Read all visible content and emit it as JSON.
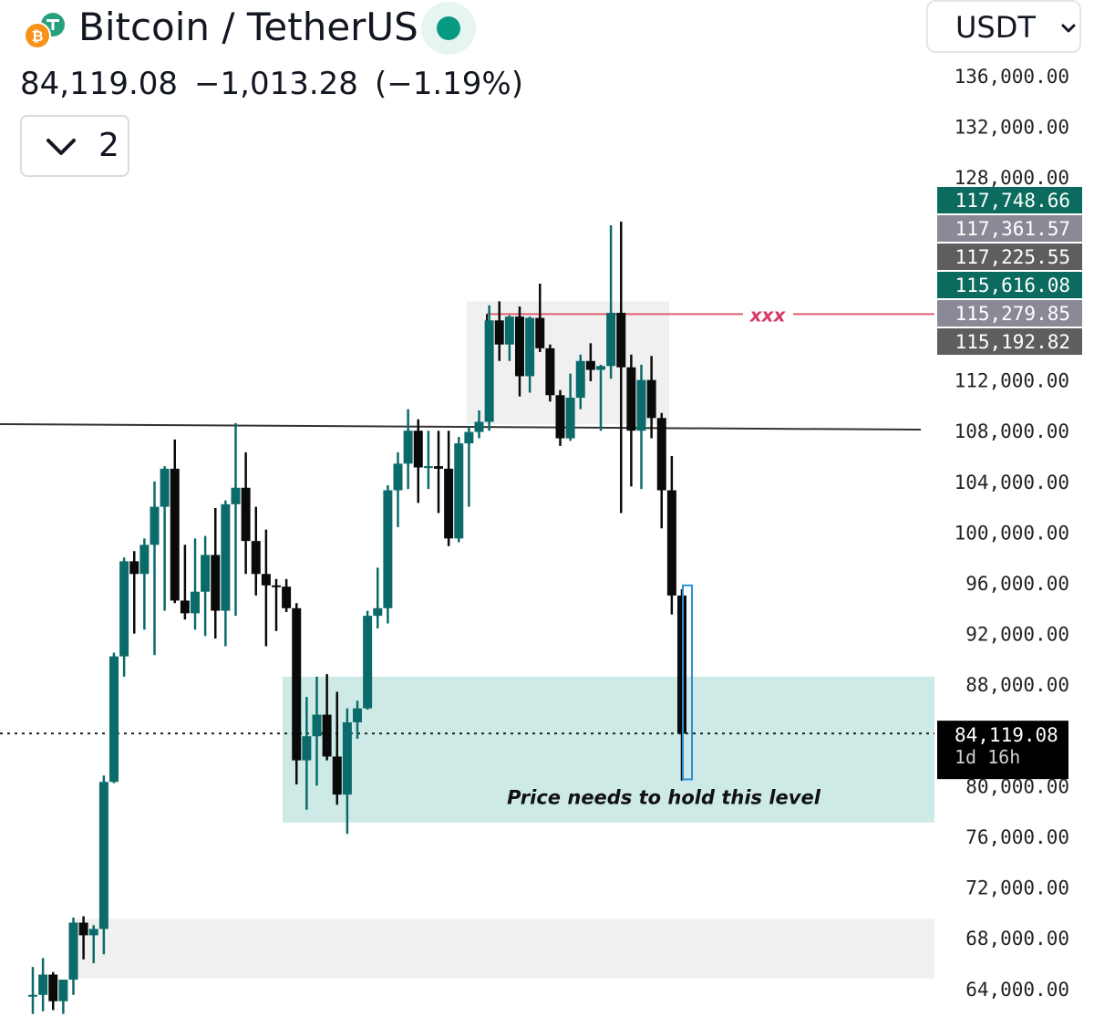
{
  "header": {
    "pair_title": "Bitcoin / TetherUS",
    "last_price": "84,119.08",
    "change": "−1,013.28",
    "change_pct": "(−1.19%)",
    "collapse_count": "2",
    "currency": "USDT"
  },
  "colors": {
    "up": "#0b6b6b",
    "down": "#0a0a0a",
    "demand_zone": "#cdeae6",
    "range_box": "#f0f0f0",
    "target_line": "#e06070",
    "target_label": "#d63a66",
    "highlight": "#2a8fd6",
    "status_dot": "#089981"
  },
  "chart_data": {
    "type": "candlestick",
    "ylim": [
      62000,
      137500
    ],
    "y_ticks": [
      "136,000.00",
      "132,000.00",
      "128,000.00",
      "112,000.00",
      "108,000.00",
      "104,000.00",
      "100,000.00",
      "96,000.00",
      "92,000.00",
      "88,000.00",
      "80,000.00",
      "76,000.00",
      "72,000.00",
      "68,000.00",
      "64,000.00"
    ],
    "y_tick_values": [
      136000,
      132000,
      128000,
      112000,
      108000,
      104000,
      100000,
      96000,
      92000,
      88000,
      80000,
      76000,
      72000,
      68000,
      64000
    ],
    "price_labels": [
      {
        "text": "117,748.66",
        "value": 117748.66,
        "color": "#0b6b5e"
      },
      {
        "text": "117,361.57",
        "value": 117361.57,
        "color": "#8a8a96"
      },
      {
        "text": "117,225.55",
        "value": 117225.55,
        "color": "#5e5e5e"
      },
      {
        "text": "115,616.08",
        "value": 115616.08,
        "color": "#0b6b5e"
      },
      {
        "text": "115,279.85",
        "value": 115279.85,
        "color": "#8a8a96"
      },
      {
        "text": "115,192.82",
        "value": 115192.82,
        "color": "#5e5e5e"
      }
    ],
    "current_price": {
      "value": 84119.08,
      "label": "84,119.08",
      "countdown": "1d 16h"
    },
    "horizontal_line": {
      "value": 108300
    },
    "target_line": {
      "value": 117200,
      "label": "xxx"
    },
    "range_box": {
      "from": 118200,
      "to": 108500
    },
    "demand_zone": {
      "from": 88600,
      "to": 77100,
      "label": "Price needs to hold this level"
    },
    "lower_zone": {
      "from": 69500,
      "to": 64800
    },
    "highlight": {
      "high": 95800,
      "low": 80500
    },
    "candles": [
      {
        "o": 63400,
        "h": 65700,
        "l": 62000,
        "c": 63500
      },
      {
        "o": 63500,
        "h": 66400,
        "l": 62200,
        "c": 65100
      },
      {
        "o": 65100,
        "h": 65300,
        "l": 62300,
        "c": 63000
      },
      {
        "o": 63000,
        "h": 64700,
        "l": 62000,
        "c": 64700
      },
      {
        "o": 64700,
        "h": 69600,
        "l": 63500,
        "c": 69200
      },
      {
        "o": 69200,
        "h": 69700,
        "l": 66300,
        "c": 68200
      },
      {
        "o": 68200,
        "h": 69000,
        "l": 66000,
        "c": 68700
      },
      {
        "o": 68700,
        "h": 80800,
        "l": 66700,
        "c": 80300
      },
      {
        "o": 80300,
        "h": 90500,
        "l": 80200,
        "c": 90200
      },
      {
        "o": 90200,
        "h": 98000,
        "l": 88600,
        "c": 97700
      },
      {
        "o": 97700,
        "h": 98500,
        "l": 92000,
        "c": 96700
      },
      {
        "o": 96700,
        "h": 99500,
        "l": 92300,
        "c": 99000
      },
      {
        "o": 99000,
        "h": 104000,
        "l": 90300,
        "c": 102000
      },
      {
        "o": 102000,
        "h": 105200,
        "l": 93800,
        "c": 105000
      },
      {
        "o": 105000,
        "h": 107300,
        "l": 94400,
        "c": 94600
      },
      {
        "o": 94600,
        "h": 99000,
        "l": 93100,
        "c": 93600
      },
      {
        "o": 93600,
        "h": 99500,
        "l": 92300,
        "c": 95300
      },
      {
        "o": 95300,
        "h": 99700,
        "l": 91800,
        "c": 98200
      },
      {
        "o": 98200,
        "h": 101900,
        "l": 91600,
        "c": 93800
      },
      {
        "o": 93800,
        "h": 102500,
        "l": 91000,
        "c": 102200
      },
      {
        "o": 102200,
        "h": 108600,
        "l": 93400,
        "c": 103500
      },
      {
        "o": 103500,
        "h": 106300,
        "l": 96700,
        "c": 99300
      },
      {
        "o": 99300,
        "h": 102000,
        "l": 95000,
        "c": 96700
      },
      {
        "o": 96700,
        "h": 100200,
        "l": 91000,
        "c": 95800
      },
      {
        "o": 95800,
        "h": 96300,
        "l": 92200,
        "c": 95700
      },
      {
        "o": 95700,
        "h": 96300,
        "l": 93700,
        "c": 94000
      },
      {
        "o": 94000,
        "h": 94400,
        "l": 80100,
        "c": 82000
      },
      {
        "o": 82000,
        "h": 87000,
        "l": 78100,
        "c": 83900
      },
      {
        "o": 83900,
        "h": 88600,
        "l": 80000,
        "c": 85600
      },
      {
        "o": 85600,
        "h": 88800,
        "l": 82000,
        "c": 82300
      },
      {
        "o": 82300,
        "h": 87400,
        "l": 78500,
        "c": 79300
      },
      {
        "o": 79300,
        "h": 86100,
        "l": 76200,
        "c": 85000
      },
      {
        "o": 85000,
        "h": 86700,
        "l": 83700,
        "c": 86100
      },
      {
        "o": 86100,
        "h": 93800,
        "l": 86000,
        "c": 93400
      },
      {
        "o": 93400,
        "h": 97200,
        "l": 92400,
        "c": 94000
      },
      {
        "o": 94000,
        "h": 103700,
        "l": 92800,
        "c": 103300
      },
      {
        "o": 103300,
        "h": 106300,
        "l": 100400,
        "c": 105400
      },
      {
        "o": 105400,
        "h": 109700,
        "l": 103400,
        "c": 108000
      },
      {
        "o": 108000,
        "h": 108900,
        "l": 102300,
        "c": 105100
      },
      {
        "o": 105100,
        "h": 108000,
        "l": 103400,
        "c": 105200
      },
      {
        "o": 105200,
        "h": 108000,
        "l": 101500,
        "c": 105000
      },
      {
        "o": 105000,
        "h": 108000,
        "l": 98900,
        "c": 99500
      },
      {
        "o": 99500,
        "h": 107500,
        "l": 99200,
        "c": 107000
      },
      {
        "o": 107000,
        "h": 108300,
        "l": 102000,
        "c": 107900
      },
      {
        "o": 107900,
        "h": 109600,
        "l": 107400,
        "c": 108700
      },
      {
        "o": 108700,
        "h": 117900,
        "l": 108000,
        "c": 116700
      },
      {
        "o": 116700,
        "h": 118200,
        "l": 113500,
        "c": 114800
      },
      {
        "o": 114800,
        "h": 117100,
        "l": 113500,
        "c": 117000
      },
      {
        "o": 117000,
        "h": 117800,
        "l": 110700,
        "c": 112300
      },
      {
        "o": 112300,
        "h": 117000,
        "l": 111000,
        "c": 116900
      },
      {
        "o": 116900,
        "h": 119600,
        "l": 114200,
        "c": 114500
      },
      {
        "o": 114500,
        "h": 114800,
        "l": 110300,
        "c": 110800
      },
      {
        "o": 110800,
        "h": 111200,
        "l": 106800,
        "c": 107400
      },
      {
        "o": 107400,
        "h": 112500,
        "l": 107200,
        "c": 110600
      },
      {
        "o": 110600,
        "h": 114000,
        "l": 109700,
        "c": 113500
      },
      {
        "o": 113500,
        "h": 114900,
        "l": 111900,
        "c": 112800
      },
      {
        "o": 112800,
        "h": 113200,
        "l": 108000,
        "c": 113100
      },
      {
        "o": 113100,
        "h": 124200,
        "l": 112100,
        "c": 117300
      },
      {
        "o": 117300,
        "h": 124500,
        "l": 101500,
        "c": 113000
      },
      {
        "o": 113000,
        "h": 114000,
        "l": 103600,
        "c": 108000
      },
      {
        "o": 108000,
        "h": 113200,
        "l": 103400,
        "c": 112000
      },
      {
        "o": 112000,
        "h": 113900,
        "l": 107400,
        "c": 109000
      },
      {
        "o": 109000,
        "h": 109400,
        "l": 100300,
        "c": 103300
      },
      {
        "o": 103300,
        "h": 106000,
        "l": 93500,
        "c": 95000
      },
      {
        "o": 95000,
        "h": 95500,
        "l": 80400,
        "c": 84100
      }
    ]
  }
}
